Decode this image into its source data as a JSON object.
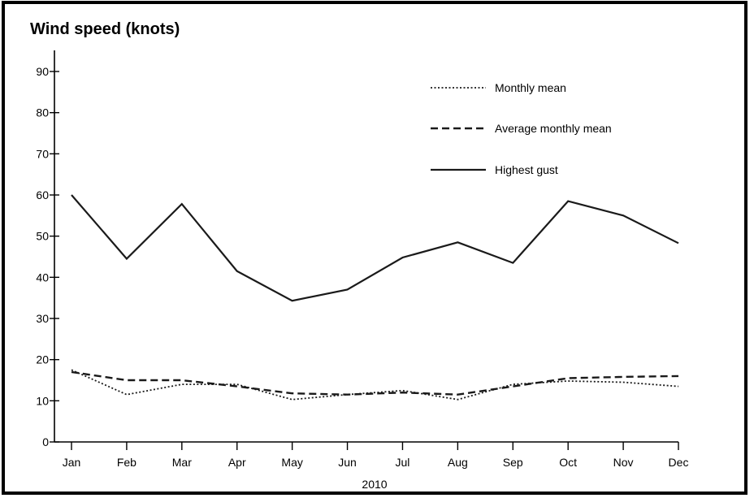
{
  "chart_data": {
    "type": "line",
    "title": "Wind speed (knots)",
    "xlabel": "2010",
    "ylabel": "",
    "ylim": [
      0,
      95
    ],
    "yticks": [
      0,
      10,
      20,
      30,
      40,
      50,
      60,
      70,
      80,
      90
    ],
    "categories": [
      "Jan",
      "Feb",
      "Mar",
      "Apr",
      "May",
      "Jun",
      "Jul",
      "Aug",
      "Sep",
      "Oct",
      "Nov",
      "Dec"
    ],
    "grid": false,
    "legend_placement": "top-right",
    "series": [
      {
        "name": "Monthly mean",
        "style": "dotted",
        "values": [
          17.5,
          11.5,
          14,
          14,
          10.3,
          11.5,
          12.5,
          10.3,
          14,
          14.8,
          14.5,
          13.5
        ]
      },
      {
        "name": "Average monthly mean",
        "style": "dashed",
        "values": [
          17,
          15,
          15,
          13.5,
          11.8,
          11.5,
          12,
          11.5,
          13.5,
          15.5,
          15.8,
          16
        ]
      },
      {
        "name": "Highest gust",
        "style": "solid",
        "values": [
          60,
          44.5,
          57.8,
          41.5,
          34.3,
          37,
          44.8,
          48.5,
          43.5,
          58.5,
          55,
          48.3
        ]
      }
    ]
  }
}
